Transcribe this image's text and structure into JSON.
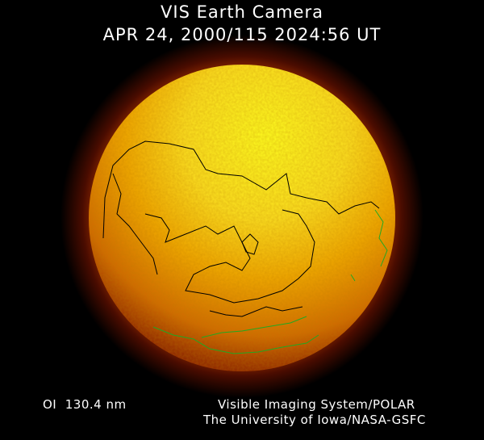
{
  "header": {
    "title": "VIS Earth Camera",
    "timestamp": "APR 24, 2000/115 2024:56 UT"
  },
  "footer": {
    "filter": "OI  130.4 nm",
    "instrument": "Visible Imaging System/POLAR",
    "institution": "The University of Iowa/NASA-GSFC"
  },
  "colors": {
    "background": "#000000",
    "disk_bright": "#ffff10",
    "disk_mid": "#f0a000",
    "disk_edge": "#c05000",
    "halo": "#5a1000",
    "coastline_day": "#000000",
    "coastline_night": "#20a020"
  }
}
